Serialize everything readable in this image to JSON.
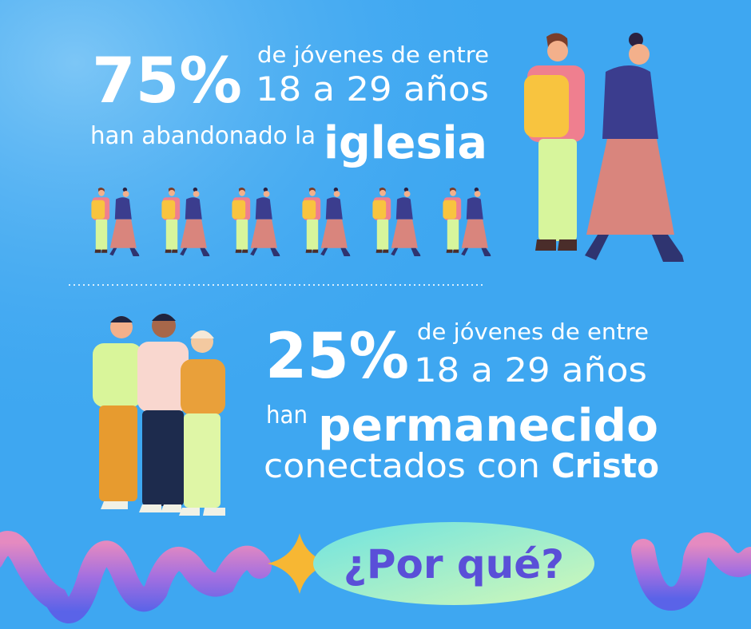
{
  "top": {
    "percent": "75%",
    "line1": "de jóvenes de entre",
    "line2": "18 a 29 años",
    "line3": "han abandonado la",
    "highlight": "iglesia"
  },
  "bottom": {
    "percent": "25%",
    "line1": "de jóvenes de entre",
    "line2": "18 a 29 años",
    "line3": "han",
    "highlight": "permanecido",
    "line4": "conectados con",
    "highlight2": "Cristo"
  },
  "button": "¿Por qué?"
}
